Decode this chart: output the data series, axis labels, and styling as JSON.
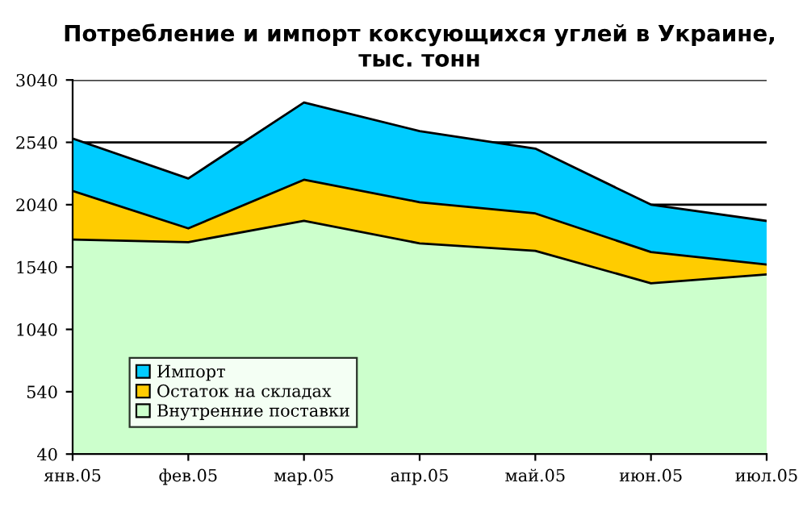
{
  "chart_data": {
    "type": "area",
    "stacked": true,
    "title": "Потребление и импорт коксующихся углей в Украине,\nтыс. тонн",
    "categories": [
      "янв.05",
      "фев.05",
      "мар.05",
      "апр.05",
      "май.05",
      "июн.05",
      "июл.05"
    ],
    "series": [
      {
        "name": "Внутренние поставки",
        "color": "#ccffcc",
        "values": [
          1760,
          1740,
          1910,
          1730,
          1670,
          1410,
          1480
        ]
      },
      {
        "name": "Остаток на складах",
        "color": "#ffcc00",
        "values": [
          390,
          110,
          330,
          330,
          300,
          250,
          80
        ]
      },
      {
        "name": "Импорт",
        "color": "#00ccff",
        "values": [
          420,
          400,
          620,
          570,
          520,
          380,
          350
        ]
      }
    ],
    "ylim": [
      40,
      3040
    ],
    "yticks": [
      40,
      540,
      1040,
      1540,
      2040,
      2540,
      3040
    ],
    "grid": "y",
    "legend": "bottom left"
  }
}
